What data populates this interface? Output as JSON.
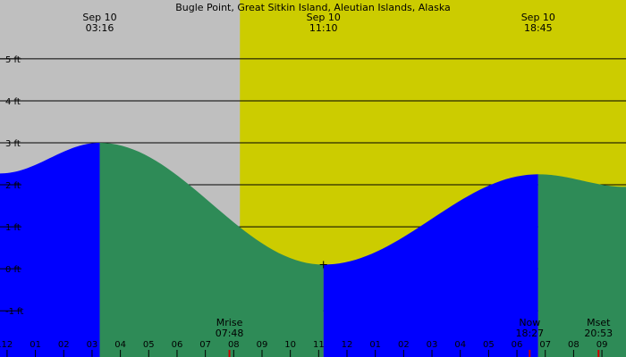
{
  "chart_data": {
    "type": "area",
    "title": "Bugle Point, Great Sitkin Island, Aleutian Islands, Alaska",
    "x_unit": "hour of day",
    "x_range": [
      0.75,
      22.85
    ],
    "y_unit": "ft",
    "ylim": [
      -2.1,
      6.4
    ],
    "y_ticks": [
      {
        "value": 5,
        "label": "5 ft"
      },
      {
        "value": 4,
        "label": "4 ft"
      },
      {
        "value": 3,
        "label": "3 ft"
      },
      {
        "value": 2,
        "label": "2 ft"
      },
      {
        "value": 1,
        "label": "1 ft"
      },
      {
        "value": 0,
        "label": "0 ft"
      },
      {
        "value": -1,
        "label": "-1 ft"
      }
    ],
    "x_ticks": [
      {
        "hour": 0.6,
        "label": "11"
      },
      {
        "hour": 1.0,
        "label": "12"
      },
      {
        "hour": 2.0,
        "label": "01"
      },
      {
        "hour": 3.0,
        "label": "02"
      },
      {
        "hour": 4.0,
        "label": "03"
      },
      {
        "hour": 5.0,
        "label": "04"
      },
      {
        "hour": 6.0,
        "label": "05"
      },
      {
        "hour": 7.0,
        "label": "06"
      },
      {
        "hour": 8.0,
        "label": "07"
      },
      {
        "hour": 9.0,
        "label": "08"
      },
      {
        "hour": 10.0,
        "label": "09"
      },
      {
        "hour": 11.0,
        "label": "10"
      },
      {
        "hour": 12.0,
        "label": "11"
      },
      {
        "hour": 13.0,
        "label": "12"
      },
      {
        "hour": 14.0,
        "label": "01"
      },
      {
        "hour": 15.0,
        "label": "02"
      },
      {
        "hour": 16.0,
        "label": "03"
      },
      {
        "hour": 17.0,
        "label": "04"
      },
      {
        "hour": 18.0,
        "label": "05"
      },
      {
        "hour": 19.0,
        "label": "06"
      },
      {
        "hour": 20.0,
        "label": "07"
      },
      {
        "hour": 21.0,
        "label": "08"
      },
      {
        "hour": 22.0,
        "label": "09"
      }
    ],
    "daylight": {
      "start": 9.22,
      "end": 22.85
    },
    "extremes": [
      {
        "date": "Sep 10",
        "time": "03:16",
        "hour": 4.27,
        "height": 3.0,
        "type": "high"
      },
      {
        "date": "Sep 10",
        "time": "11:10",
        "hour": 12.17,
        "height": 0.1,
        "type": "low"
      },
      {
        "date": "Sep 10",
        "time": "18:45",
        "hour": 19.75,
        "height": 2.25,
        "type": "high"
      }
    ],
    "events": [
      {
        "label": "Mrise",
        "time": "07:48",
        "hour": 8.85
      },
      {
        "label": "Now",
        "time": "18:27",
        "hour": 19.45
      },
      {
        "label": "Mset",
        "time": "20:53",
        "hour": 21.88
      }
    ],
    "start": {
      "hour": 0.75,
      "height": 2.27
    },
    "end": {
      "hour": 22.85,
      "height": 1.95
    },
    "colors": {
      "background": "#bfbfbf",
      "daylight": "#cccc00",
      "rising": "#0000ff",
      "falling": "#2e8b57",
      "marker_red": "#cc0000"
    }
  }
}
